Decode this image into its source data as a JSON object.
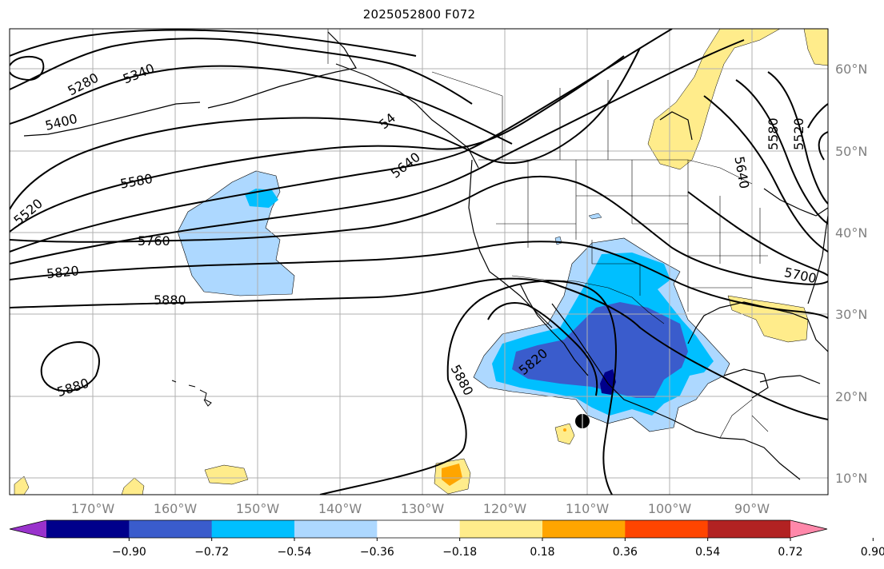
{
  "title": "2025052800 F072",
  "map": {
    "lon_labels": [
      "170°W",
      "160°W",
      "150°W",
      "140°W",
      "130°W",
      "120°W",
      "110°W",
      "100°W",
      "90°W"
    ],
    "lat_labels": [
      "60°N",
      "50°N",
      "40°N",
      "30°N",
      "20°N",
      "10°N"
    ],
    "contour_labels": [
      "5280",
      "5340",
      "5400",
      "5520",
      "5580",
      "5640",
      "5760",
      "5820",
      "5880",
      "5880",
      "5820",
      "5880",
      "5700",
      "5640",
      "5580",
      "5520",
      "54"
    ],
    "gridlines": true,
    "grid_color": "#b0b0b0"
  },
  "colorbar": {
    "colors": [
      "#9932cc",
      "#00008b",
      "#3a5ccc",
      "#00bfff",
      "#add8ff",
      "#ffffff",
      "#ffec8b",
      "#ffa500",
      "#ff4500",
      "#b22222",
      "#ff88aa"
    ],
    "tick_labels": [
      "−0.90",
      "−0.72",
      "−0.54",
      "−0.36",
      "−0.18",
      "0.18",
      "0.36",
      "0.54",
      "0.72",
      "0.90"
    ],
    "extend": "both"
  }
}
